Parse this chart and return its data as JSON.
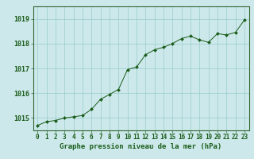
{
  "x": [
    0,
    1,
    2,
    3,
    4,
    5,
    6,
    7,
    8,
    9,
    10,
    11,
    12,
    13,
    14,
    15,
    16,
    17,
    18,
    19,
    20,
    21,
    22,
    23
  ],
  "y": [
    1014.7,
    1014.85,
    1014.9,
    1015.0,
    1015.05,
    1015.1,
    1015.35,
    1015.75,
    1015.95,
    1016.15,
    1016.95,
    1017.05,
    1017.55,
    1017.75,
    1017.85,
    1018.0,
    1018.2,
    1018.3,
    1018.15,
    1018.05,
    1018.4,
    1018.35,
    1018.45,
    1018.95
  ],
  "ylim": [
    1014.5,
    1019.5
  ],
  "xlim": [
    -0.5,
    23.5
  ],
  "yticks": [
    1015,
    1016,
    1017,
    1018,
    1019
  ],
  "xticks": [
    0,
    1,
    2,
    3,
    4,
    5,
    6,
    7,
    8,
    9,
    10,
    11,
    12,
    13,
    14,
    15,
    16,
    17,
    18,
    19,
    20,
    21,
    22,
    23
  ],
  "xlabel": "Graphe pression niveau de la mer (hPa)",
  "line_color": "#1a5c1a",
  "marker_color": "#1a5c1a",
  "bg_color": "#cce8ea",
  "grid_color": "#99cccc",
  "border_color": "#336633",
  "xlabel_color": "#1a5c1a",
  "tick_color": "#1a5c1a",
  "axis_label_fontsize": 6.5,
  "tick_fontsize": 5.5,
  "ytick_fontsize": 6.0
}
